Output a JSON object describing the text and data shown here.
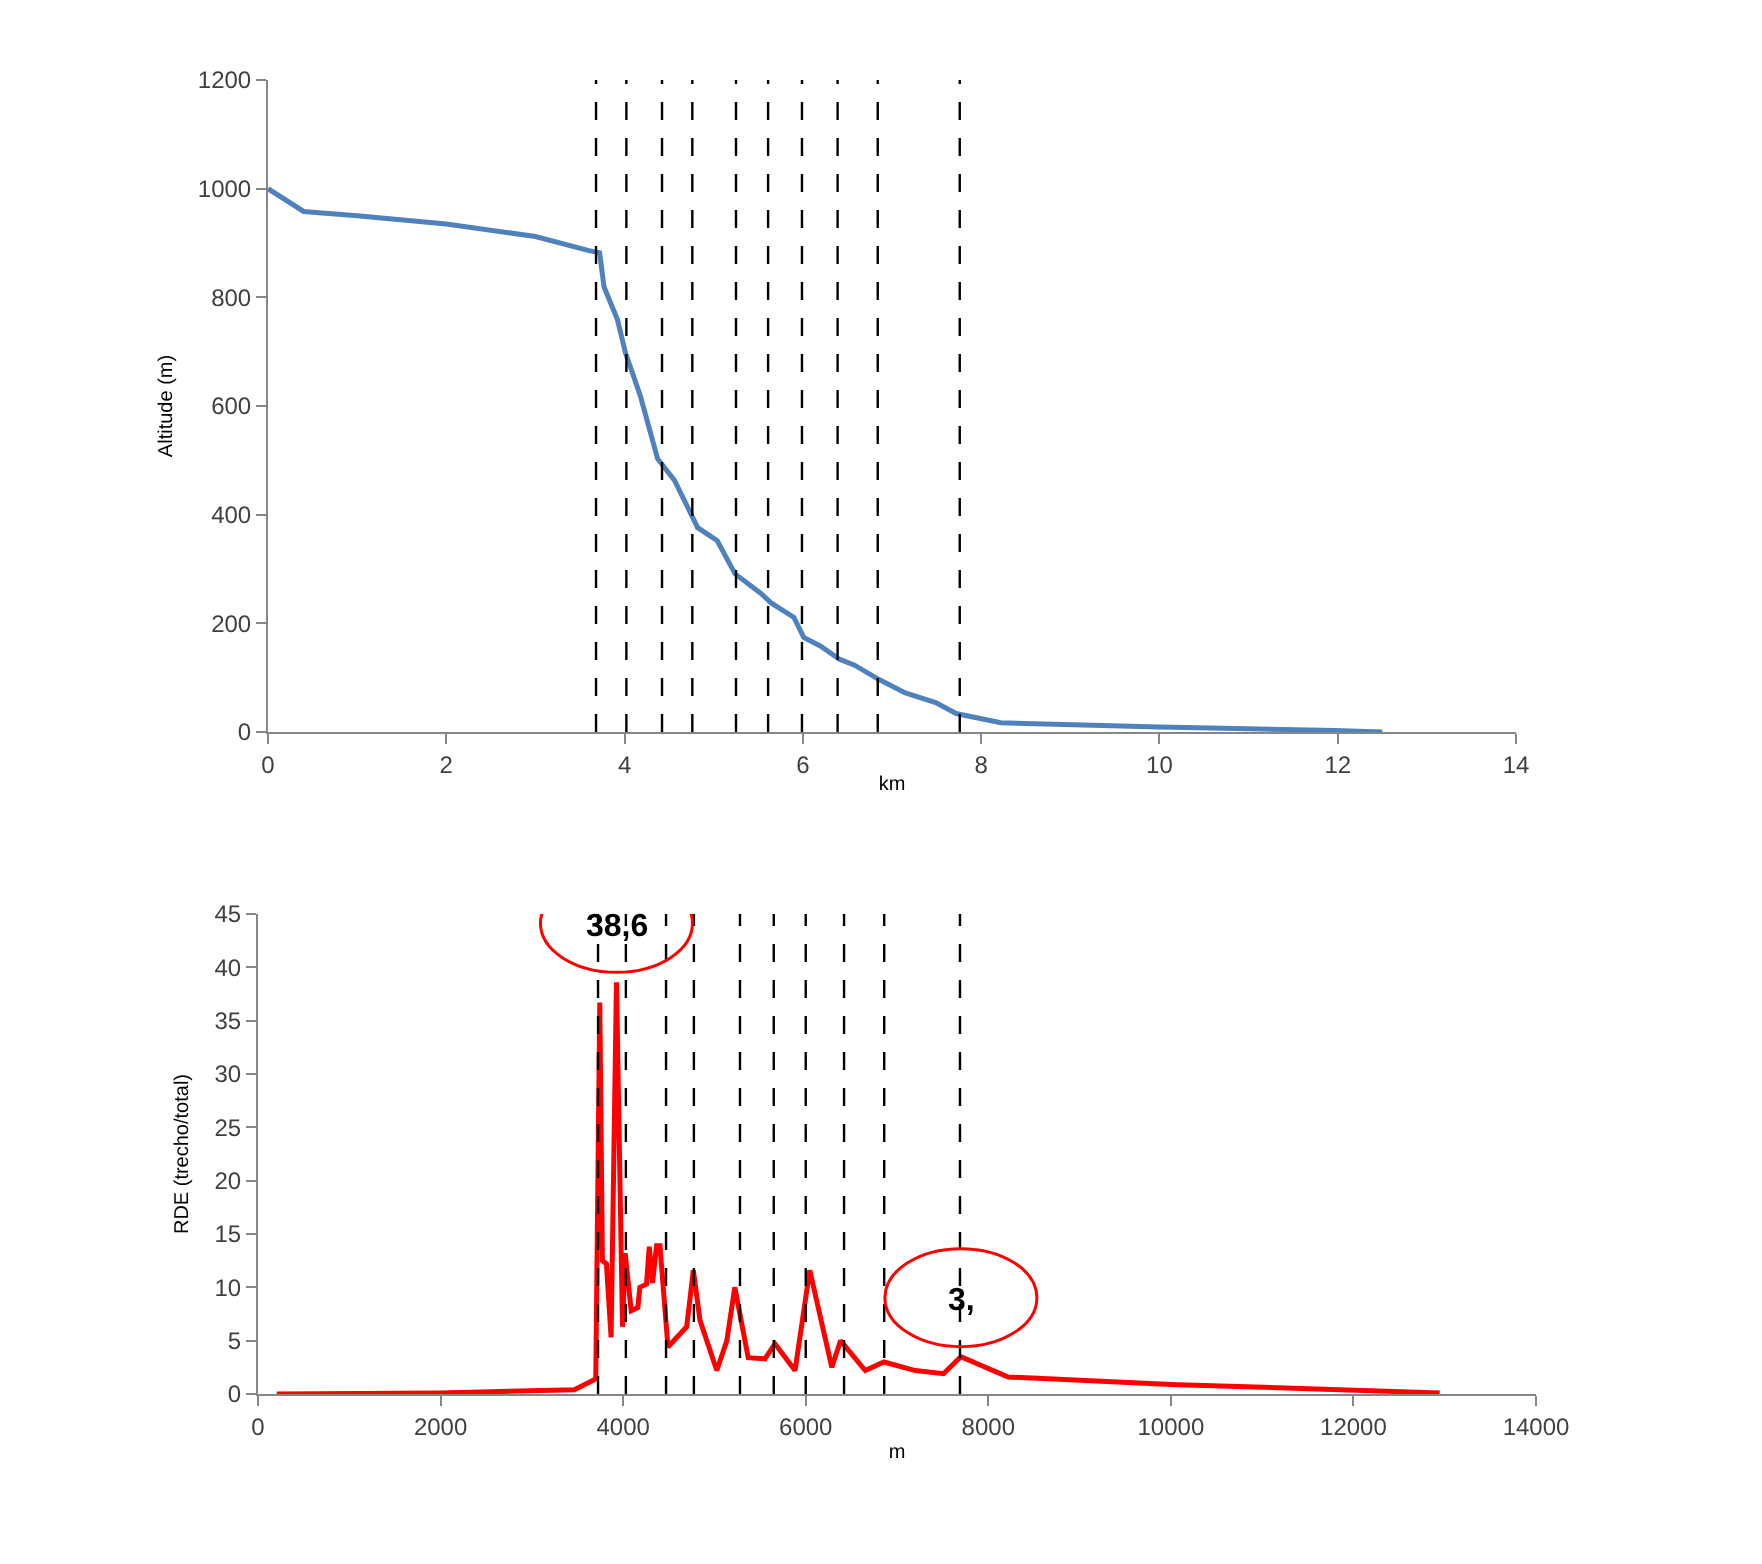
{
  "chart_data": [
    {
      "type": "line",
      "ylabel": "Altitude (m)",
      "xlabel": "km",
      "series": [
        {
          "color": "#4f81bd",
          "x": [
            0,
            0.4,
            1,
            2,
            3,
            3.6,
            3.72,
            3.77,
            3.92,
            4.01,
            4.18,
            4.37,
            4.56,
            4.74,
            4.82,
            5.04,
            5.24,
            5.53,
            5.64,
            5.9,
            6.01,
            6.2,
            6.41,
            6.58,
            6.85,
            7.15,
            7.49,
            7.72,
            8.22,
            10,
            11.96,
            12.5
          ],
          "values": [
            1000,
            958,
            950,
            935,
            912,
            886,
            882,
            819,
            759,
            698,
            617,
            503,
            463,
            403,
            376,
            352,
            291,
            255,
            238,
            211,
            174,
            158,
            134,
            123,
            97,
            72,
            54,
            34,
            17,
            9,
            3,
            0
          ]
        }
      ],
      "xlim": [
        0,
        14
      ],
      "xticks": [
        0,
        2,
        4,
        6,
        8,
        10,
        12,
        14
      ],
      "ylim": [
        0,
        1200
      ],
      "yticks": [
        0,
        200,
        400,
        600,
        800,
        1000,
        1200
      ],
      "grid": false,
      "marker": "none",
      "line_style": "solid",
      "ref_lines": [
        {
          "axis": "x",
          "value": 3.68,
          "color": "#000000",
          "line_style": "dashed"
        },
        {
          "axis": "x",
          "value": 4.02,
          "color": "#000000",
          "line_style": "dashed"
        },
        {
          "axis": "x",
          "value": 4.42,
          "color": "#000000",
          "line_style": "dashed"
        },
        {
          "axis": "x",
          "value": 4.76,
          "color": "#000000",
          "line_style": "dashed"
        },
        {
          "axis": "x",
          "value": 5.25,
          "color": "#000000",
          "line_style": "dashed"
        },
        {
          "axis": "x",
          "value": 5.61,
          "color": "#000000",
          "line_style": "dashed"
        },
        {
          "axis": "x",
          "value": 5.99,
          "color": "#000000",
          "line_style": "dashed"
        },
        {
          "axis": "x",
          "value": 6.39,
          "color": "#000000",
          "line_style": "dashed"
        },
        {
          "axis": "x",
          "value": 6.84,
          "color": "#000000",
          "line_style": "dashed"
        },
        {
          "axis": "x",
          "value": 7.76,
          "color": "#000000",
          "line_style": "dashed"
        }
      ]
    },
    {
      "type": "line",
      "ylabel": "RDE (trecho/total)",
      "xlabel": "m",
      "series": [
        {
          "color": "#ff0000",
          "x": [
            205,
            2000,
            3465,
            3700,
            3744,
            3773,
            3817,
            3868,
            3927,
            3993,
            4022,
            4088,
            4161,
            4183,
            4256,
            4286,
            4322,
            4366,
            4403,
            4491,
            4696,
            4769,
            4842,
            5026,
            5136,
            5223,
            5370,
            5553,
            5663,
            5883,
            6044,
            6286,
            6381,
            6652,
            6857,
            7201,
            7509,
            7700,
            8218,
            10000,
            12945
          ],
          "values": [
            0,
            0.1,
            0.4,
            1.4,
            36.7,
            12.5,
            12.2,
            5.3,
            38.6,
            6.3,
            13.2,
            7.8,
            8.1,
            10,
            10.3,
            13.8,
            10.4,
            13.9,
            13.9,
            4.4,
            6.3,
            11.6,
            6.9,
            2.2,
            5,
            10,
            3.4,
            3.3,
            4.7,
            2.2,
            11.6,
            2.5,
            5,
            2.2,
            3,
            2.2,
            1.9,
            3.5,
            1.6,
            0.9,
            0.1
          ]
        }
      ],
      "xlim": [
        0,
        14000
      ],
      "xticks": [
        0,
        2000,
        4000,
        6000,
        8000,
        10000,
        12000,
        14000
      ],
      "ylim": [
        0,
        45
      ],
      "yticks": [
        0,
        5,
        10,
        15,
        20,
        25,
        30,
        35,
        40,
        45
      ],
      "grid": false,
      "marker": "none",
      "line_style": "solid",
      "annotations": [
        {
          "text": "38,6",
          "x": 3927,
          "y": 38.6
        },
        {
          "text": "3,",
          "x": 7700,
          "y": 3.5
        }
      ],
      "ref_lines": [
        {
          "axis": "x",
          "value": 3725,
          "color": "#000000",
          "line_style": "dashed"
        },
        {
          "axis": "x",
          "value": 4030,
          "color": "#000000",
          "line_style": "dashed"
        },
        {
          "axis": "x",
          "value": 4470,
          "color": "#000000",
          "line_style": "dashed"
        },
        {
          "axis": "x",
          "value": 4775,
          "color": "#000000",
          "line_style": "dashed"
        },
        {
          "axis": "x",
          "value": 5280,
          "color": "#000000",
          "line_style": "dashed"
        },
        {
          "axis": "x",
          "value": 5650,
          "color": "#000000",
          "line_style": "dashed"
        },
        {
          "axis": "x",
          "value": 6000,
          "color": "#000000",
          "line_style": "dashed"
        },
        {
          "axis": "x",
          "value": 6420,
          "color": "#000000",
          "line_style": "dashed"
        },
        {
          "axis": "x",
          "value": 6860,
          "color": "#000000",
          "line_style": "dashed"
        },
        {
          "axis": "x",
          "value": 7690,
          "color": "#000000",
          "line_style": "dashed"
        }
      ]
    }
  ]
}
